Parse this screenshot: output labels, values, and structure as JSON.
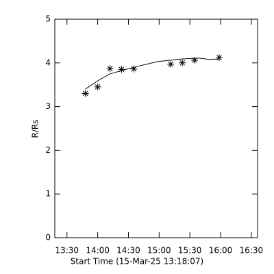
{
  "chart_data": {
    "type": "scatter",
    "x_label": "Start Time (15-Mar-25 13:18:07)",
    "y_label": "R/Rs",
    "x": [
      1792,
      2512,
      3232,
      3912,
      4632,
      6792,
      7472,
      8192,
      9632
    ],
    "values": [
      3.3,
      3.45,
      3.87,
      3.85,
      3.86,
      3.97,
      4.0,
      4.06,
      4.12
    ],
    "marker": "asterisk",
    "color": "#000000",
    "fit": {
      "x": [
        1792,
        2512,
        3232,
        4632,
        6032,
        7432,
        8432,
        9032,
        9632
      ],
      "values": [
        3.4,
        3.59,
        3.75,
        3.9,
        4.03,
        4.09,
        4.11,
        4.08,
        4.09
      ]
    },
    "xlim": [
      0,
      11880
    ],
    "ylim": [
      0,
      5
    ],
    "xticks": [
      {
        "value": 713,
        "label": "13:30"
      },
      {
        "value": 2513,
        "label": "14:00"
      },
      {
        "value": 4313,
        "label": "14:30"
      },
      {
        "value": 6113,
        "label": "15:00"
      },
      {
        "value": 7913,
        "label": "15:30"
      },
      {
        "value": 9713,
        "label": "16:00"
      },
      {
        "value": 11513,
        "label": "16:30"
      }
    ],
    "yticks": [
      0,
      1,
      2,
      3,
      4,
      5
    ]
  }
}
